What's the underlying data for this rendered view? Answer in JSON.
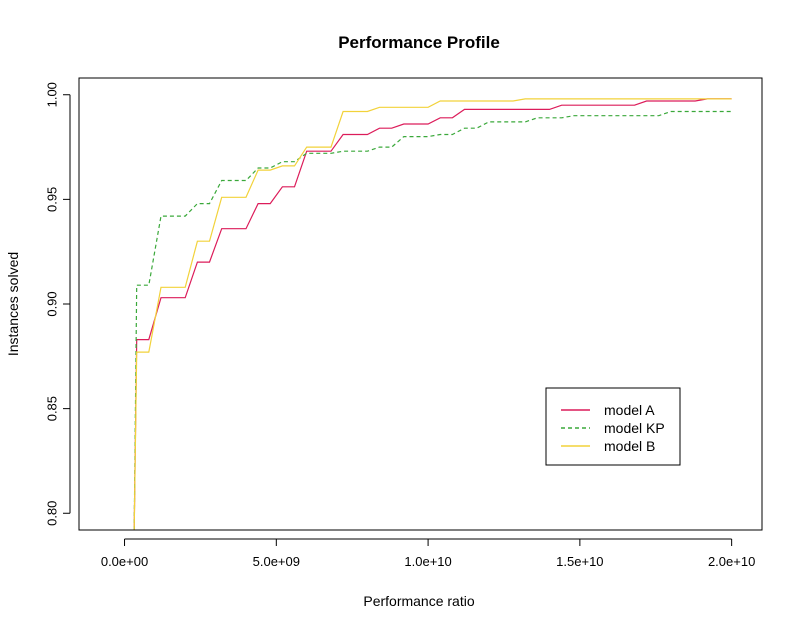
{
  "chart_data": {
    "type": "line",
    "title": "Performance Profile",
    "xlabel": "Performance ratio",
    "ylabel": "Instances solved",
    "xlim": [
      -1500000000.0,
      21000000000.0
    ],
    "ylim": [
      0.792,
      1.008
    ],
    "x_ticks": [
      0,
      5000000000,
      10000000000,
      15000000000,
      20000000000
    ],
    "x_tick_labels": [
      "0.0e+00",
      "5.0e+09",
      "1.0e+10",
      "1.5e+10",
      "2.0e+10"
    ],
    "y_ticks": [
      0.8,
      0.85,
      0.9,
      0.95,
      1.0
    ],
    "y_tick_labels": [
      "0.80",
      "0.85",
      "0.90",
      "0.95",
      "1.00"
    ],
    "grid": false,
    "legend_position": "bottom-right",
    "series": [
      {
        "name": "model A",
        "color": "#dc1c5a",
        "dash": "solid",
        "points": [
          [
            320000000.0,
            0.792
          ],
          [
            400000000.0,
            0.883
          ],
          [
            800000000.0,
            0.883
          ],
          [
            1200000000.0,
            0.903
          ],
          [
            2000000000.0,
            0.903
          ],
          [
            2400000000.0,
            0.92
          ],
          [
            2800000000.0,
            0.92
          ],
          [
            3200000000.0,
            0.936
          ],
          [
            4000000000.0,
            0.936
          ],
          [
            4400000000.0,
            0.948
          ],
          [
            4800000000.0,
            0.948
          ],
          [
            5200000000.0,
            0.956
          ],
          [
            5600000000.0,
            0.956
          ],
          [
            6000000000.0,
            0.973
          ],
          [
            6800000000.0,
            0.973
          ],
          [
            7200000000.0,
            0.981
          ],
          [
            8000000000.0,
            0.981
          ],
          [
            8400000000.0,
            0.984
          ],
          [
            8800000000.0,
            0.984
          ],
          [
            9200000000.0,
            0.986
          ],
          [
            10000000000.0,
            0.986
          ],
          [
            10400000000.0,
            0.989
          ],
          [
            10800000000.0,
            0.989
          ],
          [
            11200000000.0,
            0.993
          ],
          [
            14000000000.0,
            0.993
          ],
          [
            14400000000.0,
            0.995
          ],
          [
            16800000000.0,
            0.995
          ],
          [
            17200000000.0,
            0.997
          ],
          [
            18800000000.0,
            0.997
          ],
          [
            19200000000.0,
            0.998
          ],
          [
            20000000000.0,
            0.998
          ]
        ]
      },
      {
        "name": "model KP",
        "color": "#3aa83a",
        "dash": "dashed",
        "points": [
          [
            320000000.0,
            0.792
          ],
          [
            400000000.0,
            0.909
          ],
          [
            800000000.0,
            0.909
          ],
          [
            1200000000.0,
            0.942
          ],
          [
            2000000000.0,
            0.942
          ],
          [
            2400000000.0,
            0.948
          ],
          [
            2800000000.0,
            0.948
          ],
          [
            3200000000.0,
            0.959
          ],
          [
            4000000000.0,
            0.959
          ],
          [
            4400000000.0,
            0.965
          ],
          [
            4800000000.0,
            0.965
          ],
          [
            5200000000.0,
            0.968
          ],
          [
            5600000000.0,
            0.968
          ],
          [
            6000000000.0,
            0.972
          ],
          [
            6800000000.0,
            0.972
          ],
          [
            7200000000.0,
            0.973
          ],
          [
            8000000000.0,
            0.973
          ],
          [
            8400000000.0,
            0.975
          ],
          [
            8800000000.0,
            0.975
          ],
          [
            9200000000.0,
            0.98
          ],
          [
            10000000000.0,
            0.98
          ],
          [
            10400000000.0,
            0.981
          ],
          [
            10800000000.0,
            0.981
          ],
          [
            11200000000.0,
            0.984
          ],
          [
            11600000000.0,
            0.984
          ],
          [
            12000000000.0,
            0.987
          ],
          [
            13200000000.0,
            0.987
          ],
          [
            13600000000.0,
            0.989
          ],
          [
            14400000000.0,
            0.989
          ],
          [
            14800000000.0,
            0.99
          ],
          [
            17600000000.0,
            0.99
          ],
          [
            18000000000.0,
            0.992
          ],
          [
            20000000000.0,
            0.992
          ]
        ]
      },
      {
        "name": "model B",
        "color": "#f2d23a",
        "dash": "solid",
        "points": [
          [
            320000000.0,
            0.792
          ],
          [
            400000000.0,
            0.877
          ],
          [
            800000000.0,
            0.877
          ],
          [
            1200000000.0,
            0.908
          ],
          [
            2000000000.0,
            0.908
          ],
          [
            2400000000.0,
            0.93
          ],
          [
            2800000000.0,
            0.93
          ],
          [
            3200000000.0,
            0.951
          ],
          [
            4000000000.0,
            0.951
          ],
          [
            4400000000.0,
            0.964
          ],
          [
            4800000000.0,
            0.964
          ],
          [
            5200000000.0,
            0.966
          ],
          [
            5600000000.0,
            0.966
          ],
          [
            6000000000.0,
            0.975
          ],
          [
            6800000000.0,
            0.975
          ],
          [
            7200000000.0,
            0.992
          ],
          [
            8000000000.0,
            0.992
          ],
          [
            8400000000.0,
            0.994
          ],
          [
            10000000000.0,
            0.994
          ],
          [
            10400000000.0,
            0.997
          ],
          [
            12800000000.0,
            0.997
          ],
          [
            13200000000.0,
            0.998
          ],
          [
            20000000000.0,
            0.998
          ]
        ]
      }
    ]
  }
}
